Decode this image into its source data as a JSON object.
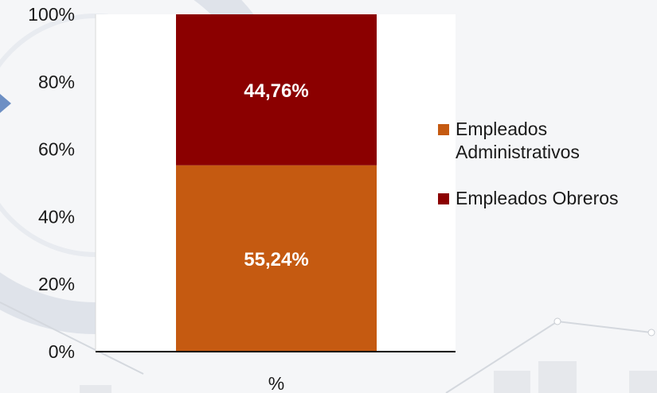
{
  "chart_data": {
    "type": "bar",
    "stacked": true,
    "percent": true,
    "categories": [
      "%"
    ],
    "series": [
      {
        "name": "Empleados Administrativos",
        "values": [
          55.24
        ],
        "label": "55,24%",
        "color": "#c55a11"
      },
      {
        "name": "Empleados Obreros",
        "values": [
          44.76
        ],
        "label": "44,76%",
        "color": "#8b0000"
      }
    ],
    "y_ticks": [
      "0%",
      "20%",
      "40%",
      "60%",
      "80%",
      "100%"
    ],
    "ylim": [
      0,
      100
    ],
    "legend_position": "right",
    "grid": false
  },
  "legend": {
    "items": [
      {
        "label": "Empleados Administrativos",
        "color": "#c55a11"
      },
      {
        "label": "Empleados Obreros",
        "color": "#8b0000"
      }
    ]
  }
}
